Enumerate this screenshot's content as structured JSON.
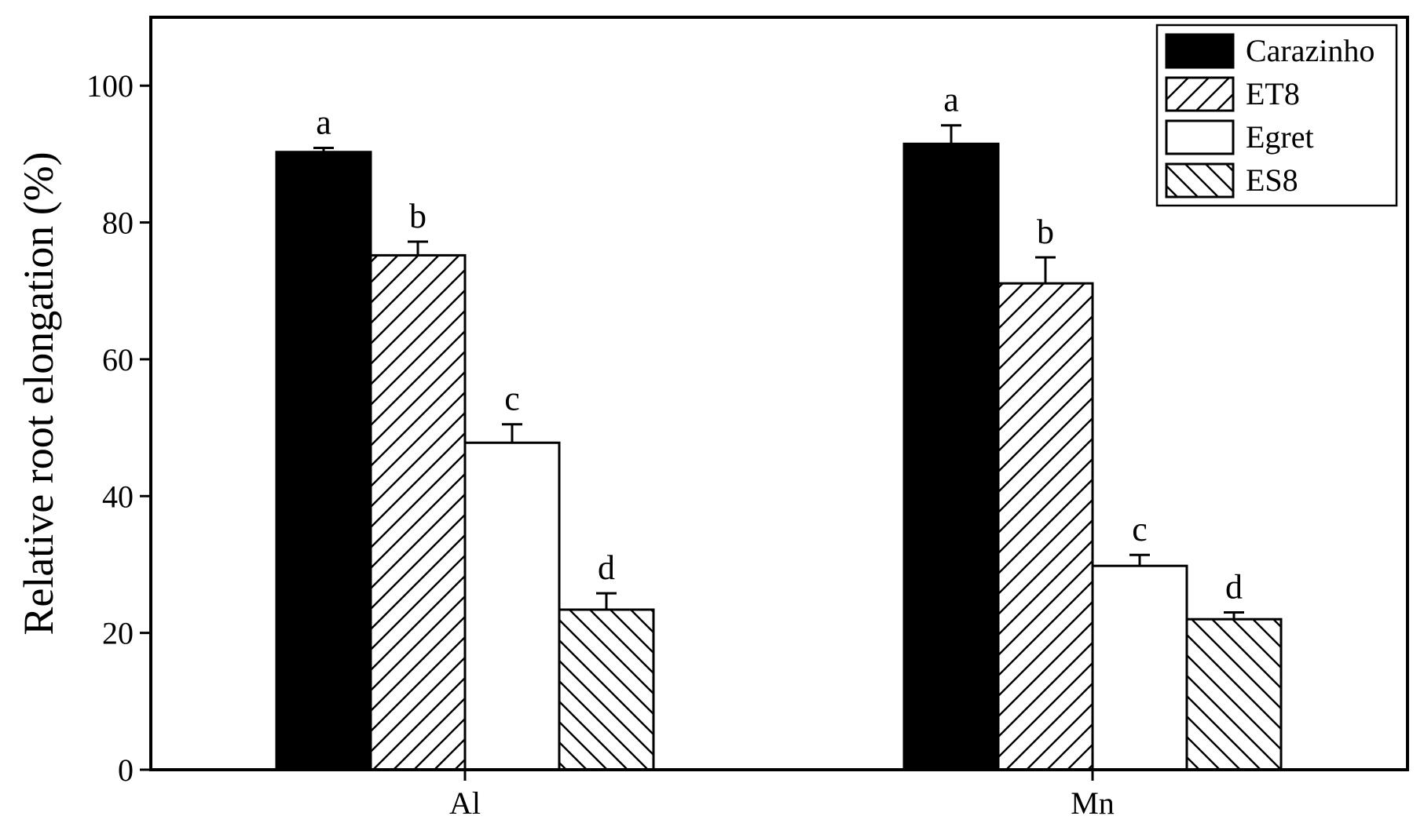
{
  "chart_data": {
    "type": "bar",
    "title": "",
    "xlabel": "",
    "ylabel": "Relative root elongation (%)",
    "categories": [
      "Al",
      "Mn"
    ],
    "ylim": [
      0,
      110
    ],
    "yticks": [
      0,
      20,
      40,
      60,
      80,
      100
    ],
    "grid": false,
    "legend_position": "top-right",
    "series": [
      {
        "name": "Carazinho",
        "values": [
          90.3,
          91.5
        ],
        "errors": [
          0.6,
          2.7
        ],
        "letters": [
          "a",
          "a"
        ],
        "fill": "solid",
        "color": "#000000"
      },
      {
        "name": "ET8",
        "values": [
          75.2,
          71.1
        ],
        "errors": [
          2.0,
          3.8
        ],
        "letters": [
          "b",
          "b"
        ],
        "fill": "hatch-forward",
        "color": "#000000"
      },
      {
        "name": "Egret",
        "values": [
          47.8,
          29.8
        ],
        "errors": [
          2.7,
          1.6
        ],
        "letters": [
          "c",
          "c"
        ],
        "fill": "empty",
        "color": "#ffffff"
      },
      {
        "name": "ES8",
        "values": [
          23.4,
          22.0
        ],
        "errors": [
          2.4,
          1.0
        ],
        "letters": [
          "d",
          "d"
        ],
        "fill": "hatch-backward",
        "color": "#000000"
      }
    ]
  }
}
